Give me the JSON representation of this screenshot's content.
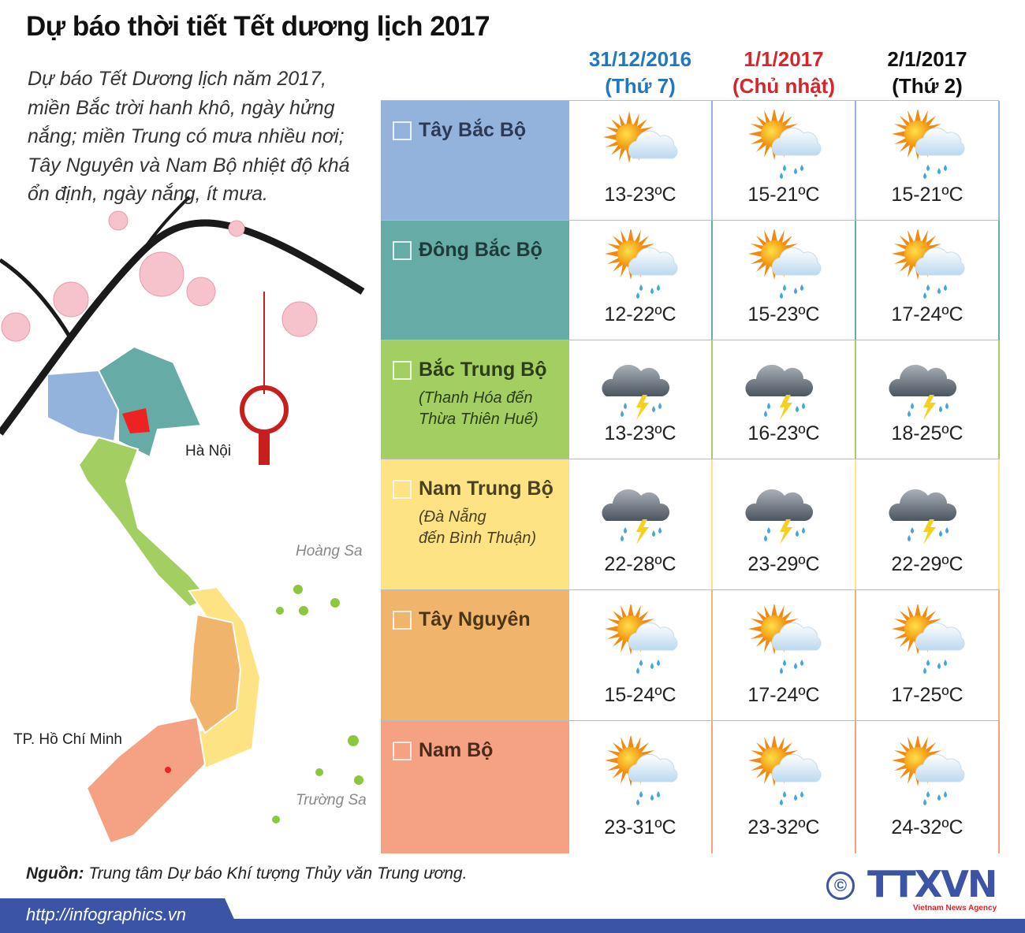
{
  "title": "Dự báo thời tiết Tết dương lịch 2017",
  "intro": "Dự báo Tết Dương lịch năm 2017, miền Bắc trời hanh khô, ngày hửng nắng; miền Trung có mưa nhiều nơi; Tây Nguyên và Nam Bộ nhiệt độ khá ổn định, ngày nắng, ít mưa.",
  "columns": [
    {
      "date": "31/12/2016",
      "day": "(Thứ 7)",
      "color": "#2277c0"
    },
    {
      "date": "1/1/2017",
      "day": "(Chủ nhật)",
      "color": "#d7262b"
    },
    {
      "date": "2/1/2017",
      "day": "(Thứ 2)",
      "color": "#111111"
    }
  ],
  "rows": [
    {
      "region": "Tây Bắc Bộ",
      "sub1": "",
      "sub2": "",
      "color": "#94b3dc",
      "text_color": "#2c3a55",
      "cells": [
        {
          "icon": "sun-cloud-icon",
          "temp": "13-23ºC"
        },
        {
          "icon": "sun-cloud-rain-icon",
          "temp": "15-21ºC"
        },
        {
          "icon": "sun-cloud-rain-icon",
          "temp": "15-21ºC"
        }
      ]
    },
    {
      "region": "Đông Bắc Bộ",
      "sub1": "",
      "sub2": "",
      "color": "#66aba5",
      "text_color": "#1f3a3a",
      "cells": [
        {
          "icon": "sun-cloud-rain-icon",
          "temp": "12-22ºC"
        },
        {
          "icon": "sun-cloud-rain-icon",
          "temp": "15-23ºC"
        },
        {
          "icon": "sun-cloud-rain-icon",
          "temp": "17-24ºC"
        }
      ]
    },
    {
      "region": "Bắc Trung Bộ",
      "sub1": "(Thanh Hóa đến",
      "sub2": "Thừa Thiên Huế)",
      "color": "#a3cf62",
      "text_color": "#2c3d17",
      "cells": [
        {
          "icon": "storm-cloud-icon",
          "temp": "13-23ºC"
        },
        {
          "icon": "storm-cloud-icon",
          "temp": "16-23ºC"
        },
        {
          "icon": "storm-cloud-icon",
          "temp": "18-25ºC"
        }
      ]
    },
    {
      "region": "Nam Trung Bộ",
      "sub1": "(Đà Nẵng",
      "sub2": "đến Bình Thuận)",
      "color": "#fde383",
      "text_color": "#4a4120",
      "cells": [
        {
          "icon": "storm-cloud-icon",
          "temp": "22-28ºC"
        },
        {
          "icon": "storm-cloud-icon",
          "temp": "23-29ºC"
        },
        {
          "icon": "storm-cloud-icon",
          "temp": "22-29ºC"
        }
      ]
    },
    {
      "region": "Tây Nguyên",
      "sub1": "",
      "sub2": "",
      "color": "#f1b46d",
      "text_color": "#4a3515",
      "cells": [
        {
          "icon": "sun-cloud-rain-icon",
          "temp": "15-24ºC"
        },
        {
          "icon": "sun-cloud-rain-icon",
          "temp": "17-24ºC"
        },
        {
          "icon": "sun-cloud-rain-icon",
          "temp": "17-25ºC"
        }
      ]
    },
    {
      "region": "Nam Bộ",
      "sub1": "",
      "sub2": "",
      "color": "#f4a283",
      "text_color": "#4a2a1a",
      "cells": [
        {
          "icon": "sun-cloud-rain-icon",
          "temp": "23-31ºC"
        },
        {
          "icon": "sun-cloud-rain-icon",
          "temp": "23-32ºC"
        },
        {
          "icon": "sun-cloud-rain-icon",
          "temp": "24-32ºC"
        }
      ]
    }
  ],
  "map": {
    "hanoi": "Hà Nội",
    "hcm": "TP. Hồ Chí Minh",
    "hoang_sa": "Hoàng Sa",
    "truong_sa": "Trường Sa"
  },
  "source_label": "Nguồn:",
  "source_text": " Trung tâm Dự báo Khí tượng Thủy văn Trung ương.",
  "url": "http://infographics.vn",
  "logo": {
    "copyright": "©",
    "name": "TTXVN",
    "tagline": "Vietnam News Agency"
  }
}
